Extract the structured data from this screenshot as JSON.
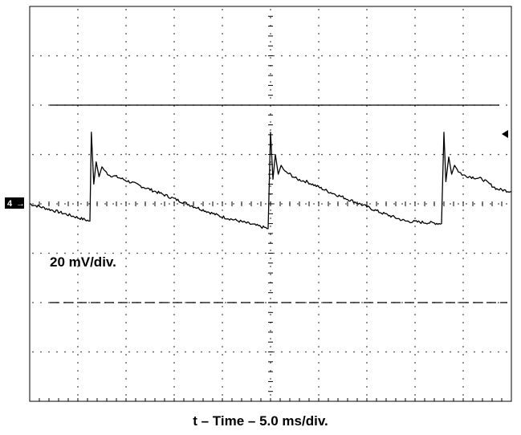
{
  "chart_data": {
    "type": "line",
    "title": "",
    "vertical_scale_label": "20 mV/div.",
    "xlabel": "t – Time – 5.0 ms/div.",
    "ylabel": "",
    "channel_marker": "4",
    "grid": true,
    "divisions": {
      "x": 10,
      "y": 8
    },
    "xlim_divisions": [
      0,
      10
    ],
    "ylim_divisions": [
      -4,
      4
    ],
    "reference_lines_divisions": {
      "upper_solid": 2,
      "lower_dashed": -2
    },
    "series": [
      {
        "x": [
          0,
          0.55,
          1.25,
          1.28,
          1.33,
          1.38,
          1.44,
          1.5,
          1.57,
          1.66,
          1.8,
          2.2,
          2.8,
          3.4,
          3.95,
          4.95,
          5.0,
          5.05,
          5.1,
          5.16,
          5.22,
          5.3,
          5.4,
          5.55,
          5.75,
          6.2,
          6.8,
          7.3,
          7.8,
          8.55,
          8.6,
          8.64,
          8.7,
          8.76,
          8.82,
          8.9,
          9.0,
          9.15,
          9.4,
          9.7,
          10.0
        ],
        "y": [
          0.0,
          -0.15,
          -0.35,
          1.45,
          0.4,
          0.85,
          0.55,
          0.75,
          0.65,
          0.58,
          0.55,
          0.4,
          0.18,
          -0.05,
          -0.25,
          -0.5,
          1.45,
          0.5,
          1.0,
          0.6,
          0.78,
          0.65,
          0.6,
          0.5,
          0.45,
          0.25,
          0.02,
          -0.18,
          -0.35,
          -0.4,
          1.45,
          0.45,
          0.95,
          0.6,
          0.78,
          0.66,
          0.58,
          0.55,
          0.5,
          0.3,
          0.25
        ]
      }
    ]
  }
}
